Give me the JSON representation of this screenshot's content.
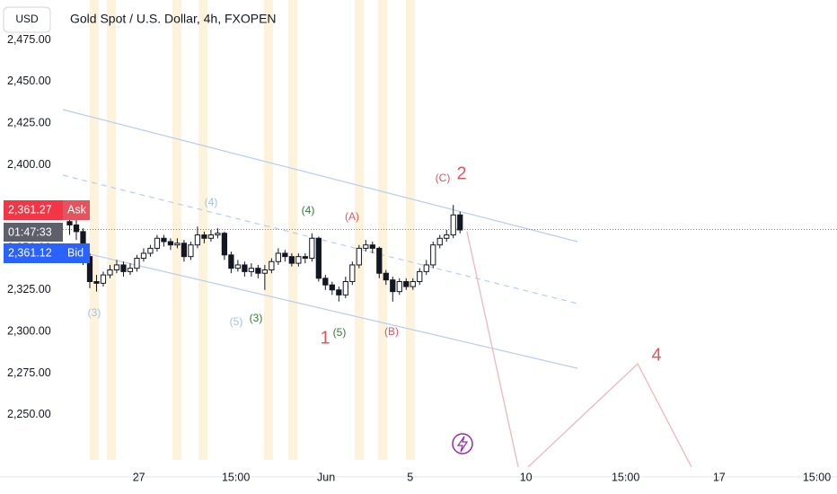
{
  "header": {
    "currency_button": "USD",
    "symbol_title": "Gold Spot / U.S. Dollar, 4h, FXOPEN"
  },
  "price_tags": {
    "ask": {
      "value": 2361.27,
      "label": "2,361.27",
      "tag": "Ask"
    },
    "countdown": "01:47:33",
    "bid": {
      "value": 2361.12,
      "label": "2,361.12",
      "tag": "Bid"
    }
  },
  "chart_data": {
    "type": "candlestick",
    "open": [
      2366,
      2364,
      2360,
      2345,
      2330,
      2329,
      2334,
      2337,
      2340,
      2336,
      2338,
      2344,
      2347,
      2350,
      2356,
      2354,
      2352,
      2353,
      2345,
      2352,
      2358,
      2356,
      2358,
      2359,
      2346,
      2338,
      2340,
      2336,
      2338,
      2335,
      2337,
      2342,
      2347,
      2345,
      2341,
      2345,
      2344,
      2356,
      2332,
      2328,
      2325,
      2322,
      2330,
      2340,
      2350,
      2352,
      2350,
      2335,
      2331,
      2324,
      2330,
      2327,
      2330,
      2336,
      2340,
      2352,
      2356,
      2358,
      2370
    ],
    "high": [
      2370,
      2367,
      2362,
      2347,
      2334,
      2336,
      2340,
      2343,
      2342,
      2341,
      2346,
      2350,
      2352,
      2358,
      2358,
      2356,
      2356,
      2355,
      2354,
      2363,
      2360,
      2361,
      2362,
      2360,
      2348,
      2343,
      2342,
      2341,
      2340,
      2340,
      2344,
      2350,
      2349,
      2347,
      2347,
      2347,
      2359,
      2357,
      2334,
      2330,
      2327,
      2333,
      2342,
      2352,
      2355,
      2354,
      2351,
      2337,
      2333,
      2332,
      2332,
      2332,
      2338,
      2343,
      2354,
      2358,
      2361,
      2376,
      2372
    ],
    "low": [
      2358,
      2355,
      2340,
      2326,
      2324,
      2327,
      2332,
      2335,
      2333,
      2334,
      2336,
      2342,
      2345,
      2348,
      2351,
      2349,
      2350,
      2342,
      2343,
      2350,
      2353,
      2354,
      2356,
      2343,
      2335,
      2336,
      2333,
      2333,
      2332,
      2325,
      2335,
      2340,
      2342,
      2339,
      2339,
      2341,
      2342,
      2330,
      2325,
      2322,
      2318,
      2320,
      2328,
      2338,
      2348,
      2347,
      2332,
      2328,
      2318,
      2322,
      2325,
      2325,
      2328,
      2334,
      2338,
      2350,
      2354,
      2356,
      2359
    ],
    "close": [
      2364,
      2360,
      2345,
      2330,
      2329,
      2334,
      2337,
      2340,
      2336,
      2338,
      2344,
      2347,
      2350,
      2356,
      2354,
      2352,
      2353,
      2345,
      2352,
      2358,
      2356,
      2358,
      2359,
      2346,
      2338,
      2340,
      2336,
      2338,
      2335,
      2337,
      2342,
      2347,
      2345,
      2341,
      2345,
      2344,
      2356,
      2332,
      2328,
      2325,
      2322,
      2330,
      2340,
      2350,
      2352,
      2350,
      2335,
      2331,
      2324,
      2330,
      2327,
      2330,
      2336,
      2340,
      2352,
      2356,
      2358,
      2370,
      2361
    ],
    "up_color": "#ffffff",
    "down_color": "#131722",
    "edge_color": "#131722",
    "ylim": [
      2223,
      2499
    ],
    "yticks": [
      {
        "value": 2250,
        "label": "2,250.00"
      },
      {
        "value": 2275,
        "label": "2,275.00"
      },
      {
        "value": 2300,
        "label": "2,300.00"
      },
      {
        "value": 2325,
        "label": "2,325.00"
      },
      {
        "value": 2350,
        "label": "2,350.00"
      },
      {
        "value": 2375,
        "label": "2,375.00"
      },
      {
        "value": 2400,
        "label": "2,400.00"
      },
      {
        "value": 2425,
        "label": "2,425.00"
      },
      {
        "value": 2450,
        "label": "2,450.00"
      },
      {
        "value": 2475,
        "label": "2,475.00"
      }
    ],
    "xlim": [
      0,
      115
    ],
    "xticks": [
      {
        "value": 11.3,
        "label": "27"
      },
      {
        "value": 25.7,
        "label": "15:00"
      },
      {
        "value": 39.1,
        "label": "Jun"
      },
      {
        "value": 51.6,
        "label": "5"
      },
      {
        "value": 68.8,
        "label": "10"
      },
      {
        "value": 83.6,
        "label": "15:00"
      },
      {
        "value": 97.5,
        "label": "17"
      },
      {
        "value": 112,
        "label": "15:00"
      }
    ],
    "annotations": [
      {
        "text": "(3)",
        "color": "#9fc3e8"
      },
      {
        "text": "(4)",
        "color": "#9fc3e8"
      },
      {
        "text": "(5)",
        "color": "#9fc3e8"
      },
      {
        "text": "(3)",
        "color": "#2e7d32"
      },
      {
        "text": "(4)",
        "color": "#2e7d32"
      },
      {
        "text": "(5)",
        "color": "#2e7d32"
      },
      {
        "text": "(A)",
        "color": "#e5535e"
      },
      {
        "text": "(B)",
        "color": "#e5535e"
      },
      {
        "text": "(C)",
        "color": "#e5535e"
      },
      {
        "text": "1",
        "color": "#e5535e"
      },
      {
        "text": "2",
        "color": "#e5535e"
      },
      {
        "text": "4",
        "color": "#e5535e"
      }
    ]
  }
}
